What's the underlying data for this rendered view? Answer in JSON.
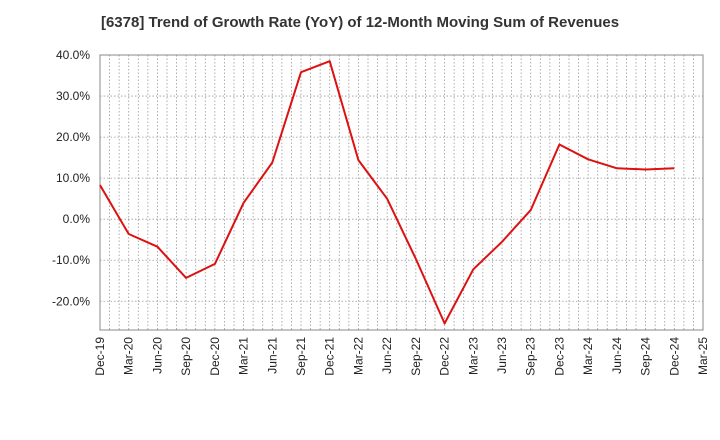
{
  "chart_data": {
    "type": "line",
    "title": "[6378]  Trend of Growth Rate (YoY) of 12-Month Moving Sum of Revenues",
    "xlabel": "",
    "ylabel": "",
    "ylim": [
      -27,
      40
    ],
    "y_ticks": [
      40,
      30,
      20,
      10,
      0,
      -10,
      -20
    ],
    "y_tick_labels": [
      "40.0%",
      "30.0%",
      "20.0%",
      "10.0%",
      "0.0%",
      "-10.0%",
      "-20.0%"
    ],
    "x_tick_labels": [
      "Dec-19",
      "Mar-20",
      "Jun-20",
      "Sep-20",
      "Dec-20",
      "Mar-21",
      "Jun-21",
      "Sep-21",
      "Dec-21",
      "Mar-22",
      "Jun-22",
      "Sep-22",
      "Dec-22",
      "Mar-23",
      "Jun-23",
      "Sep-23",
      "Dec-23",
      "Mar-24",
      "Jun-24",
      "Sep-24",
      "Dec-24",
      "Mar-25"
    ],
    "grid": true,
    "series": [
      {
        "color": "#dd1111",
        "x": [
          "Dec-19",
          "Mar-20",
          "Jun-20",
          "Sep-20",
          "Dec-20",
          "Mar-21",
          "Jun-21",
          "Sep-21",
          "Dec-21",
          "Mar-22",
          "Jun-22",
          "Sep-22",
          "Dec-22",
          "Mar-23",
          "Jun-23",
          "Sep-23",
          "Dec-23",
          "Mar-24",
          "Jun-24",
          "Sep-24",
          "Dec-24"
        ],
        "values": [
          8.3,
          -3.6,
          -6.7,
          -14.3,
          -10.9,
          4.0,
          13.8,
          35.8,
          38.5,
          14.4,
          5.0,
          -9.7,
          -25.4,
          -12.2,
          -5.5,
          2.2,
          18.2,
          14.6,
          12.4,
          12.1,
          12.4
        ]
      }
    ]
  }
}
